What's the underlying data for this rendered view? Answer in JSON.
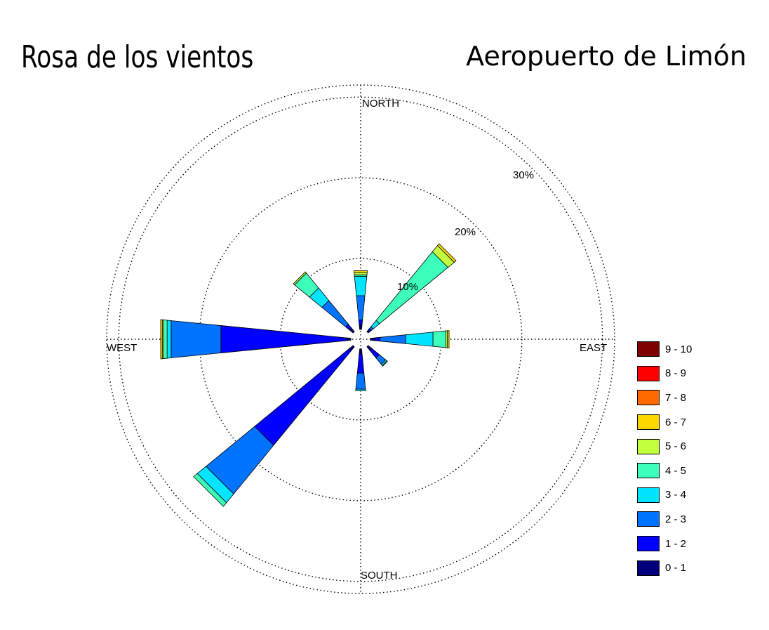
{
  "title": "Rosa de los vientos",
  "subtitle": "Aeropuerto de Limón",
  "chart_data": {
    "type": "windrose",
    "units": "%",
    "rings": [
      10,
      20,
      30
    ],
    "ring_labels": [
      "10%",
      "20%",
      "30%"
    ],
    "max_radius": 31.5,
    "direction_labels": {
      "north": "NORTH",
      "east": "EAST",
      "south": "SOUTH",
      "west": "WEST"
    },
    "bins": [
      {
        "label": "0 - 1",
        "color": "#00007f"
      },
      {
        "label": "1 - 2",
        "color": "#0000ff"
      },
      {
        "label": "2 - 3",
        "color": "#0073ff"
      },
      {
        "label": "3 - 4",
        "color": "#00e4ff"
      },
      {
        "label": "4 - 5",
        "color": "#3dffbb"
      },
      {
        "label": "5 - 6",
        "color": "#c2ff3d"
      },
      {
        "label": "6 - 7",
        "color": "#ffd700"
      },
      {
        "label": "7 - 8",
        "color": "#ff6a00"
      },
      {
        "label": "8 - 9",
        "color": "#ff0000"
      },
      {
        "label": "9 - 10",
        "color": "#7f0000"
      }
    ],
    "sectors": [
      {
        "direction": "N",
        "angle": 0,
        "values": [
          0.6,
          0.6,
          3.0,
          2.4,
          0.2,
          0.3,
          0.2
        ]
      },
      {
        "direction": "NNE",
        "angle": 22.5,
        "values": []
      },
      {
        "direction": "NE",
        "angle": 45,
        "values": [
          0.2,
          0.3,
          0.3,
          1.0,
          11.0,
          1.0,
          0.3
        ]
      },
      {
        "direction": "ENE",
        "angle": 67.5,
        "values": []
      },
      {
        "direction": "E",
        "angle": 90,
        "values": [
          0.6,
          0.6,
          3.2,
          3.4,
          1.6,
          0.2,
          0.2
        ]
      },
      {
        "direction": "ESE",
        "angle": 112.5,
        "values": []
      },
      {
        "direction": "SE",
        "angle": 135,
        "values": [
          0.6,
          1.2,
          1.0,
          0.2,
          0.1
        ]
      },
      {
        "direction": "SSE",
        "angle": 157.5,
        "values": []
      },
      {
        "direction": "S",
        "angle": 180,
        "values": [
          0.6,
          2.4,
          2.0,
          0.2
        ]
      },
      {
        "direction": "SSW",
        "angle": 202.5,
        "values": []
      },
      {
        "direction": "SW",
        "angle": 225,
        "values": [
          0.6,
          15.2,
          7.8,
          1.4,
          0.6
        ]
      },
      {
        "direction": "WSW",
        "angle": 247.5,
        "values": []
      },
      {
        "direction": "W",
        "angle": 270,
        "values": [
          0.6,
          15.6,
          6.2,
          0.5,
          0.4,
          0.2,
          0.2
        ]
      },
      {
        "direction": "WNW",
        "angle": 292.5,
        "values": []
      },
      {
        "direction": "NW",
        "angle": 315,
        "values": [
          0.6,
          0.6,
          3.8,
          2.0,
          2.4,
          0.2
        ]
      },
      {
        "direction": "NNW",
        "angle": 337.5,
        "values": []
      }
    ]
  }
}
